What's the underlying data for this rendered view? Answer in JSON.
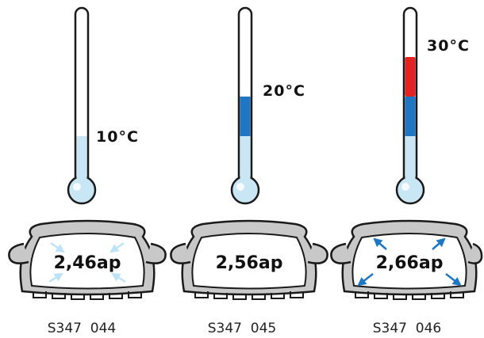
{
  "colors": {
    "outline": "#1a1a1a",
    "light_blue": "#c9e6f5",
    "blue": "#1f77c4",
    "red": "#e32323",
    "tire_fill": "#c8c8c8",
    "arrow_in": "#bfe3f6",
    "arrow_out": "#1f77c4"
  },
  "panels": [
    {
      "temperature": "10°C",
      "pressure": "2,46ap",
      "code": "S347  044",
      "fill_levels": {
        "light": true,
        "blue": false,
        "red": false
      },
      "arrows": "inward",
      "arrow_icon": "arrow-inward-icon"
    },
    {
      "temperature": "20°C",
      "pressure": "2,56ap",
      "code": "S347  045",
      "fill_levels": {
        "light": true,
        "blue": true,
        "red": false
      },
      "arrows": "none",
      "arrow_icon": ""
    },
    {
      "temperature": "30°C",
      "pressure": "2,66ap",
      "code": "S347  046",
      "fill_levels": {
        "light": true,
        "blue": true,
        "red": true
      },
      "arrows": "outward",
      "arrow_icon": "arrow-outward-icon"
    }
  ]
}
